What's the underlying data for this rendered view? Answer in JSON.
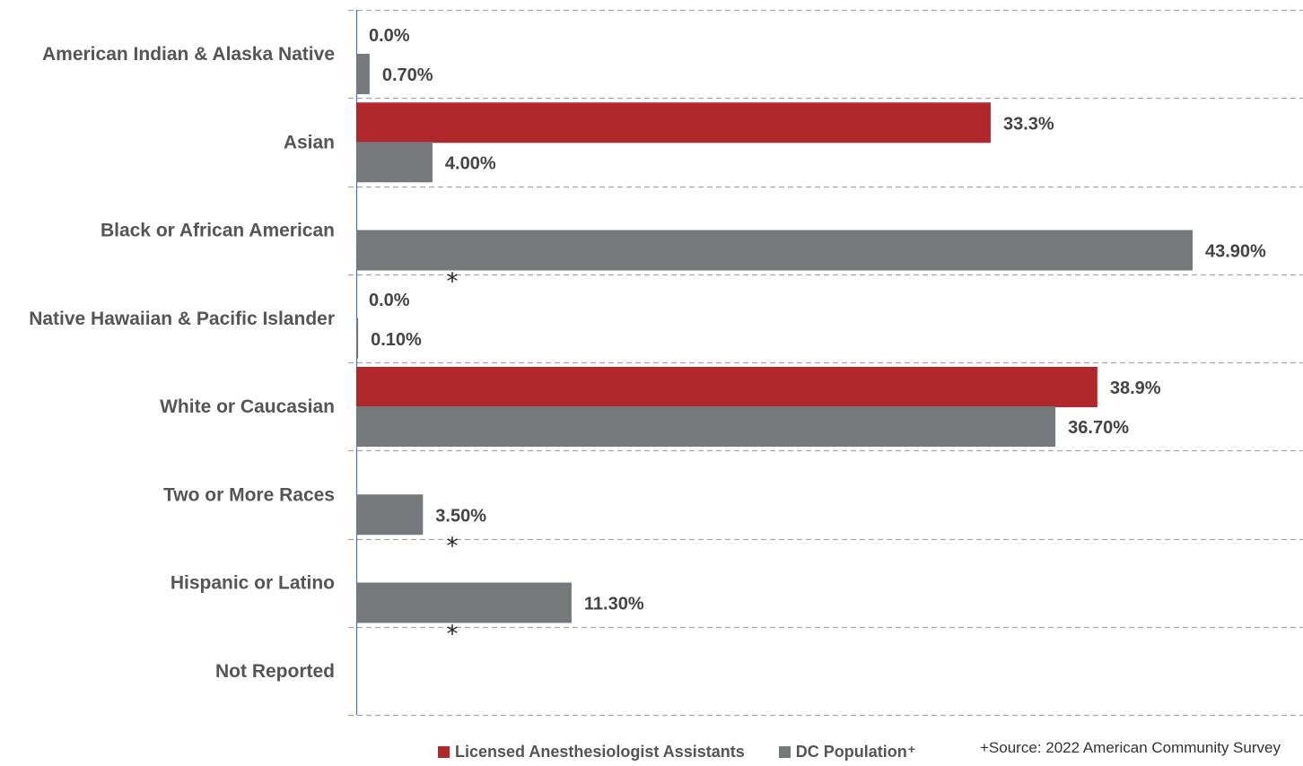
{
  "chart_data": {
    "type": "bar",
    "orientation": "horizontal",
    "categories": [
      "American Indian & Alaska Native",
      "Asian",
      "Black or African American",
      "Native Hawaiian & Pacific Islander",
      "White or Caucasian",
      "Two or More Races",
      "Hispanic or Latino",
      "Not Reported"
    ],
    "series": [
      {
        "name": "Licensed Anesthesiologist Assistants",
        "color": "#b0272c",
        "values": [
          0.0,
          33.3,
          null,
          0.0,
          38.9,
          null,
          null,
          null
        ],
        "labels": [
          "0.0%",
          "33.3%",
          "*",
          "0.0%",
          "38.9%",
          "*",
          "*",
          ""
        ]
      },
      {
        "name": "DC Population",
        "name_suffix": "+",
        "color": "#76797c",
        "values": [
          0.7,
          4.0,
          43.9,
          0.1,
          36.7,
          3.5,
          11.3,
          null
        ],
        "labels": [
          "0.70%",
          "4.00%",
          "43.90%",
          "0.10%",
          "36.70%",
          "3.50%",
          "11.30%",
          ""
        ]
      }
    ],
    "xlim": [
      0,
      47
    ],
    "grid": "dashed horizontal separators",
    "legend_position": "bottom",
    "source_note": "+Source: 2022 American Community Survey"
  }
}
